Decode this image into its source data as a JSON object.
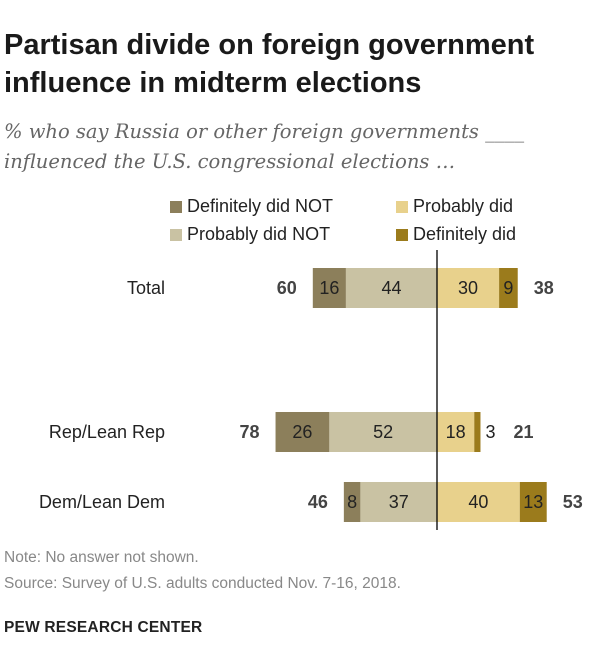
{
  "header": {
    "title_line1": "Partisan divide on foreign government",
    "title_line2": "influence in midterm elections",
    "subtitle_line1": "% who say Russia or other foreign governments ____",
    "subtitle_line2": "influenced the U.S. congressional elections …"
  },
  "colors": {
    "definitely_not": "#8c7f5b",
    "probably_not": "#c9c2a3",
    "probably_did": "#e8d18c",
    "definitely_did": "#9b7b1c",
    "axis_line": "#000000"
  },
  "legend": [
    {
      "label": "Definitely did NOT",
      "color": "#8c7f5b"
    },
    {
      "label": "Probably did",
      "color": "#e8d18c"
    },
    {
      "label": "Probably did NOT",
      "color": "#c9c2a3"
    },
    {
      "label": "Definitely did",
      "color": "#9b7b1c"
    }
  ],
  "chart_data": {
    "type": "bar",
    "orientation": "horizontal",
    "stacked": "diverging",
    "categories": [
      "Total",
      "Rep/Lean Rep",
      "Dem/Lean Dem"
    ],
    "series": [
      {
        "name": "Definitely did NOT",
        "values": [
          16,
          26,
          8
        ],
        "side": "negative"
      },
      {
        "name": "Probably did NOT",
        "values": [
          44,
          52,
          37
        ],
        "side": "negative"
      },
      {
        "name": "Probably did",
        "values": [
          30,
          18,
          40
        ],
        "side": "positive"
      },
      {
        "name": "Definitely did",
        "values": [
          9,
          3,
          13
        ],
        "side": "positive"
      }
    ],
    "net_did_not": [
      60,
      78,
      46
    ],
    "net_did": [
      38,
      21,
      53
    ],
    "legend_position": "top",
    "grid": false
  },
  "footer": {
    "note": "Note: No answer not shown.",
    "source": "Source: Survey of U.S. adults conducted Nov. 7-16, 2018.",
    "org": "PEW RESEARCH CENTER"
  }
}
